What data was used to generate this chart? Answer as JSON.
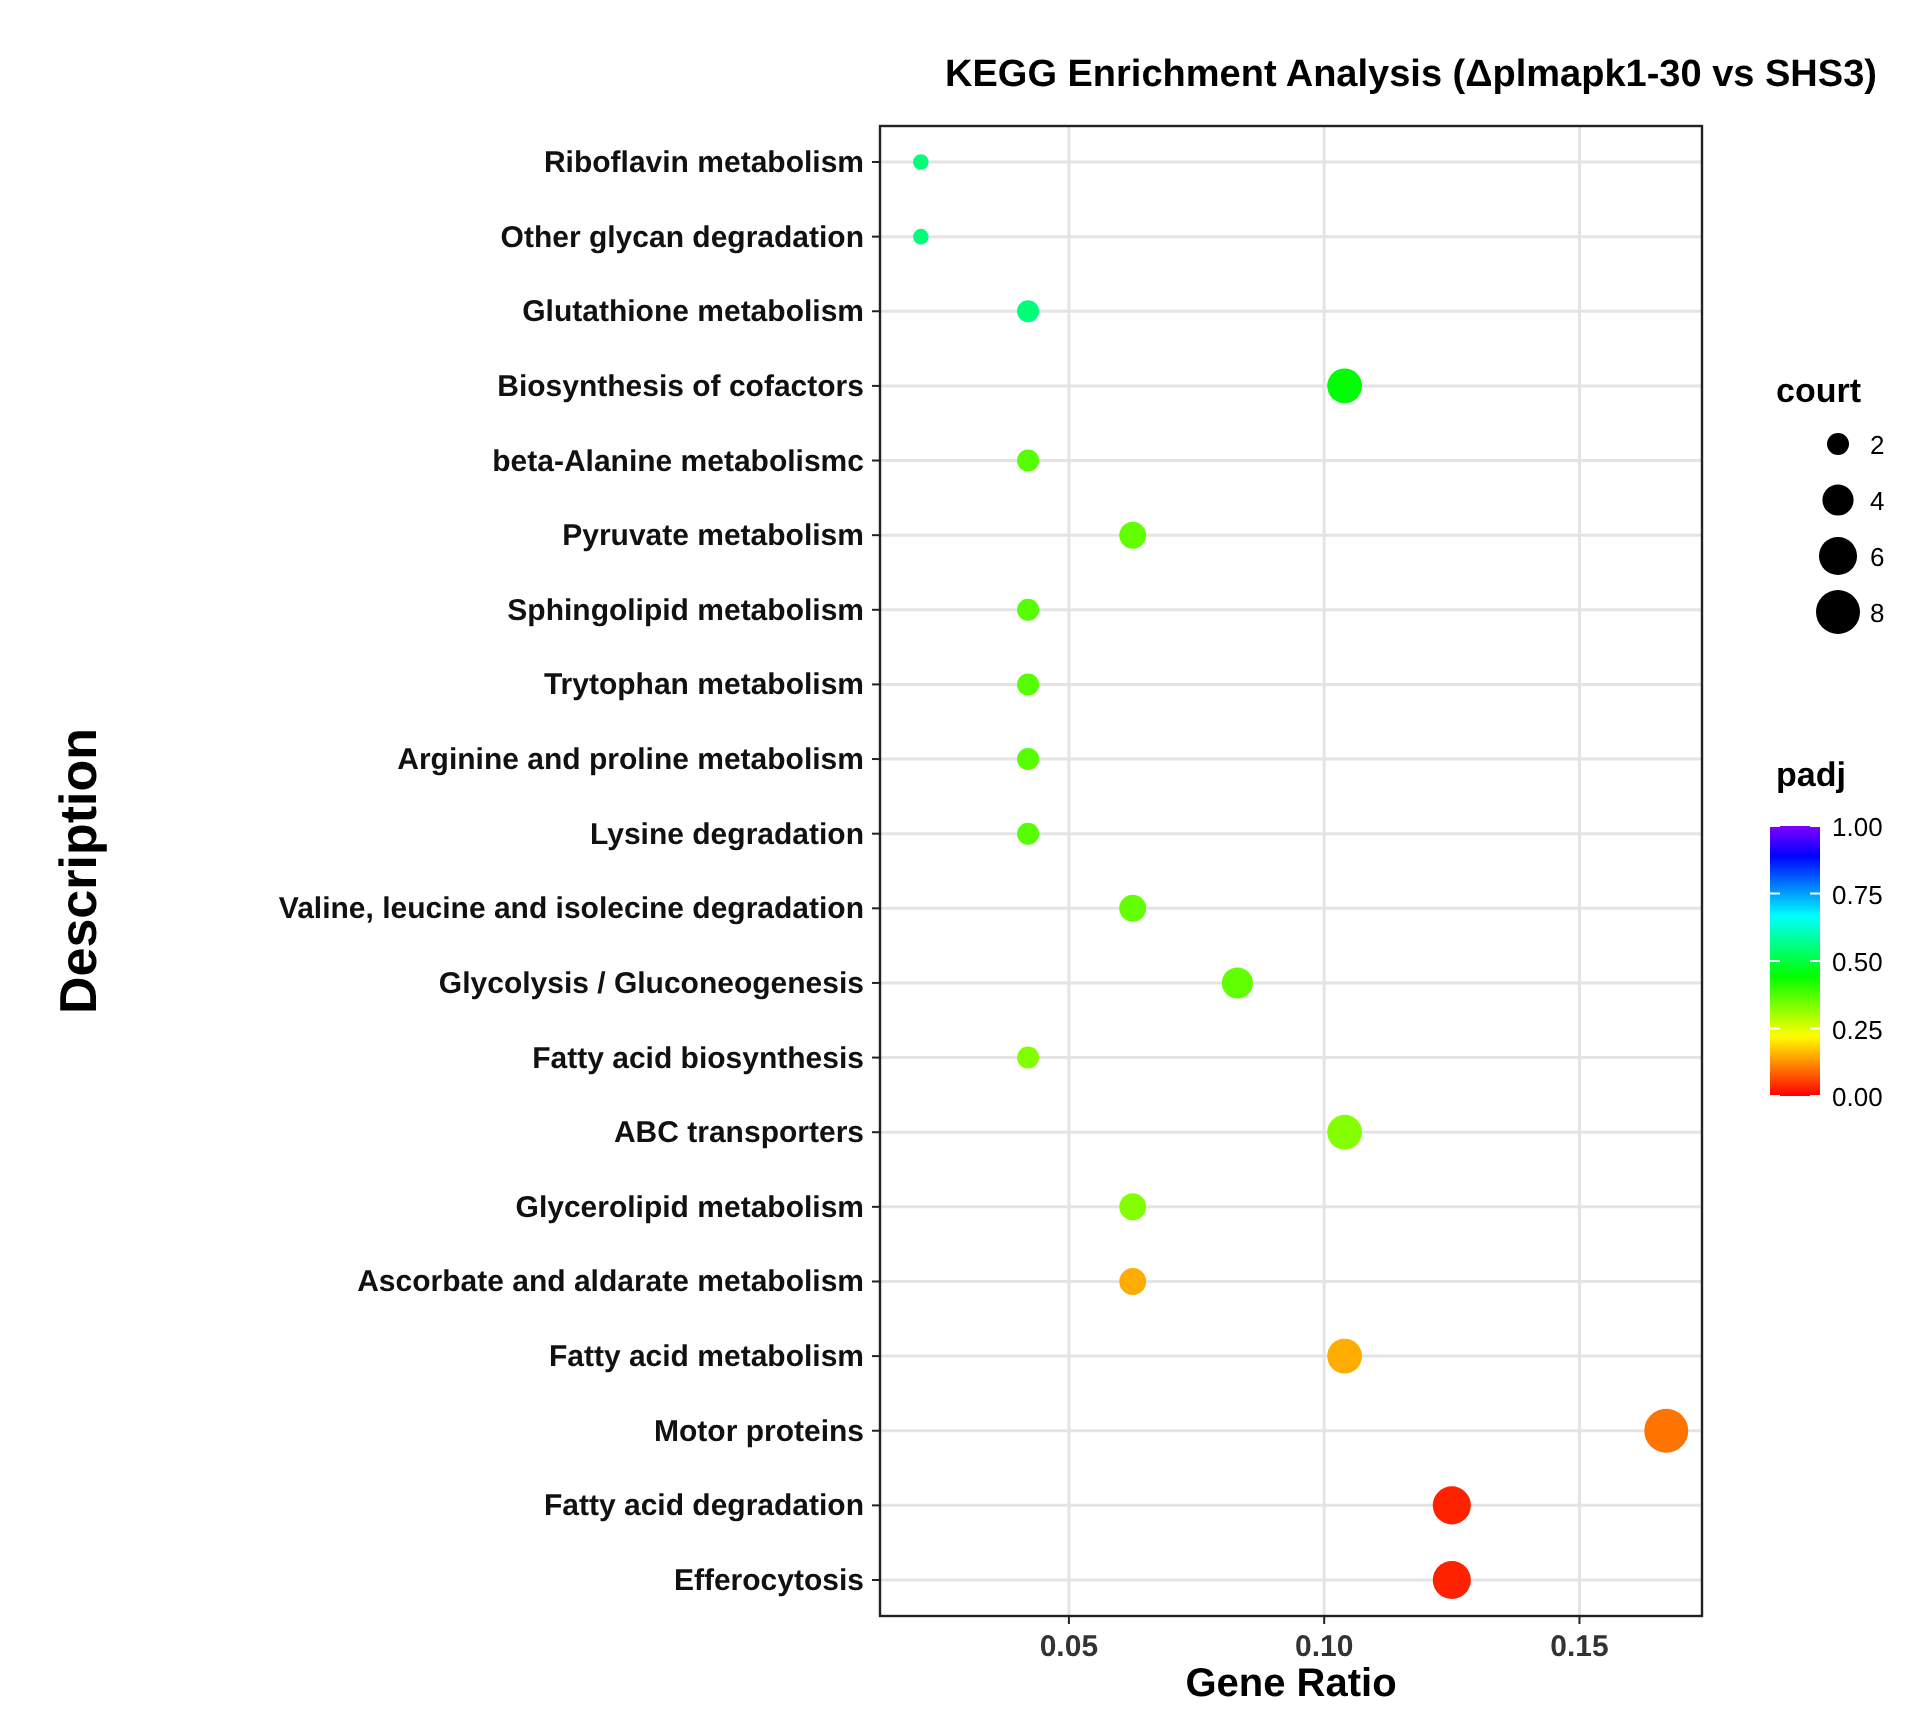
{
  "chart_data": {
    "type": "bubble",
    "orientation": "horizontal",
    "title": "KEGG Enrichment Analysis (Δplmapk1-30 vs SHS3)",
    "xlabel": "Gene Ratio",
    "ylabel": "Description",
    "legend_title": "court",
    "clabel": "padj",
    "categories": [
      "Riboflavin metabolism",
      "Other glycan degradation",
      "Glutathione metabolism",
      "Biosynthesis of cofactors",
      "beta-Alanine metabolismc",
      "Pyruvate metabolism",
      "Sphingolipid metabolism",
      "Trytophan metabolism",
      "Arginine and proline metabolism",
      "Lysine degradation",
      "Valine, leucine and isolecine degradation",
      "Glycolysis / Gluconeogenesis",
      "Fatty acid biosynthesis",
      "ABC transporters",
      "Glycerolipid metabolism",
      "Ascorbate and aldarate metabolism",
      "Fatty acid metabolism",
      "Motor proteins",
      "Fatty acid degradation",
      "Efferocytosis"
    ],
    "values": [
      0.021,
      0.021,
      0.042,
      0.104,
      0.042,
      0.0625,
      0.042,
      0.042,
      0.042,
      0.042,
      0.0625,
      0.083,
      0.042,
      0.104,
      0.0625,
      0.0625,
      0.104,
      0.167,
      0.125,
      0.125
    ],
    "sizes": [
      1,
      1,
      2,
      5,
      2,
      3,
      2,
      2,
      2,
      2,
      3,
      4,
      2,
      5,
      3,
      3,
      5,
      8,
      6,
      6
    ],
    "cvalues": [
      0.55,
      0.55,
      0.55,
      0.45,
      0.37,
      0.36,
      0.37,
      0.37,
      0.37,
      0.37,
      0.36,
      0.36,
      0.33,
      0.33,
      0.33,
      0.15,
      0.15,
      0.1,
      0.03,
      0.03
    ],
    "size_legend": [
      2,
      4,
      6,
      8
    ],
    "xlim": [
      0.013,
      0.174
    ],
    "xticks": [
      {
        "value": 0.05,
        "label": "0.05"
      },
      {
        "value": 0.1,
        "label": "0.10"
      },
      {
        "value": 0.15,
        "label": "0.15"
      }
    ],
    "clim": [
      0,
      1
    ],
    "cticks": [
      {
        "value": 0,
        "label": "0.00"
      },
      {
        "value": 0.25,
        "label": "0.25"
      },
      {
        "value": 0.5,
        "label": "0.50"
      },
      {
        "value": 0.75,
        "label": "0.75"
      },
      {
        "value": 1,
        "label": "1.00"
      }
    ],
    "grid": true
  }
}
